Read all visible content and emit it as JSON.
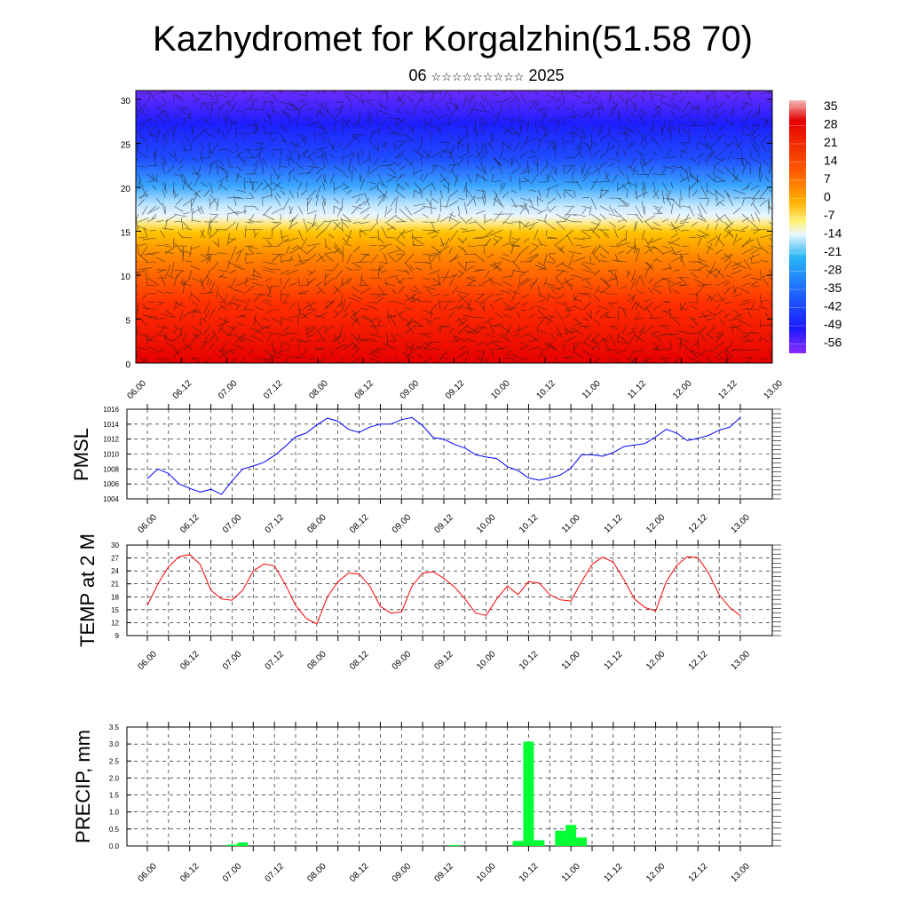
{
  "header": {
    "title": "Kazhydromet for Korgalzhin(51.58 70)",
    "date_day": "06",
    "date_stars": "☆☆☆☆☆☆☆☆☆",
    "date_year": "2025"
  },
  "colors": {
    "pmsl_line": "#0000ff",
    "temp_line": "#ff0000",
    "precip_bar": "#00ff33",
    "grid": "#000000"
  },
  "chart_data": [
    {
      "type": "heatmap",
      "title": "",
      "xlabel": "",
      "ylabel": "",
      "x_tick_labels": [
        "06.00",
        "06.12",
        "07.00",
        "07.12",
        "08.00",
        "08.12",
        "09.00",
        "09.12",
        "10.00",
        "10.12",
        "11.00",
        "11.12",
        "12.00",
        "12.12",
        "13.00"
      ],
      "y_ticks": [
        0,
        5,
        10,
        15,
        20,
        25,
        30
      ],
      "ylim": [
        0,
        31
      ],
      "colorbar_labels": [
        "35",
        "28",
        "21",
        "14",
        "7",
        "0",
        "-7",
        "-14",
        "-21",
        "-28",
        "-35",
        "-42",
        "-49",
        "-56"
      ],
      "colorbar_stops": [
        "#f3b8b8",
        "#e60000",
        "#ff5a00",
        "#ff9a00",
        "#ffd000",
        "#fff58a",
        "#d6f0ff",
        "#29b6f6",
        "#1f6bff",
        "#1a1aff",
        "#7a1cff"
      ],
      "overlay": "wind vectors"
    },
    {
      "type": "line",
      "ylabel": "PMSL",
      "x_tick_labels": [
        "06.00",
        "06.12",
        "07.00",
        "07.12",
        "08.00",
        "08.12",
        "09.00",
        "09.12",
        "10.00",
        "10.12",
        "11.00",
        "11.12",
        "12.00",
        "12.12",
        "13.00"
      ],
      "y_ticks": [
        1004,
        1006,
        1008,
        1010,
        1012,
        1014,
        1016
      ],
      "ylim": [
        1004,
        1016
      ],
      "x_hours": [
        0,
        3,
        6,
        9,
        12,
        15,
        18,
        21,
        24,
        27,
        30,
        33,
        36,
        39,
        42,
        45,
        48,
        51,
        54,
        57,
        60,
        63,
        66,
        69,
        72,
        75,
        78,
        81,
        84,
        87,
        90,
        93,
        96,
        99,
        102,
        105,
        108,
        111,
        114,
        117,
        120,
        123,
        126,
        129,
        132,
        135,
        138,
        141,
        144,
        147,
        150,
        153,
        156,
        159,
        162,
        165,
        168
      ],
      "values": [
        1006.7,
        1008.0,
        1007.4,
        1006.0,
        1005.4,
        1004.9,
        1005.3,
        1004.6,
        1006.4,
        1008.0,
        1008.4,
        1008.9,
        1009.8,
        1011.0,
        1012.3,
        1012.8,
        1013.9,
        1014.8,
        1014.4,
        1013.3,
        1012.9,
        1013.6,
        1014.0,
        1014.0,
        1014.6,
        1014.9,
        1013.8,
        1012.2,
        1012.0,
        1011.3,
        1010.8,
        1009.9,
        1009.6,
        1009.4,
        1008.3,
        1007.8,
        1006.8,
        1006.5,
        1006.8,
        1007.2,
        1008.1,
        1009.9,
        1009.9,
        1009.7,
        1010.2,
        1011.0,
        1011.2,
        1011.4,
        1012.3,
        1013.3,
        1012.8,
        1011.8,
        1012.1,
        1012.5,
        1013.2,
        1013.6,
        1014.9
      ]
    },
    {
      "type": "line",
      "ylabel": "TEMP at 2 M",
      "x_tick_labels": [
        "06.00",
        "06.12",
        "07.00",
        "07.12",
        "08.00",
        "08.12",
        "09.00",
        "09.12",
        "10.00",
        "10.12",
        "11.00",
        "11.12",
        "12.00",
        "12.12",
        "13.00"
      ],
      "y_ticks": [
        9,
        12,
        15,
        18,
        21,
        24,
        27,
        30
      ],
      "ylim": [
        9,
        30
      ],
      "x_hours": [
        0,
        3,
        6,
        9,
        12,
        15,
        18,
        21,
        24,
        27,
        30,
        33,
        36,
        39,
        42,
        45,
        48,
        51,
        54,
        57,
        60,
        63,
        66,
        69,
        72,
        75,
        78,
        81,
        84,
        87,
        90,
        93,
        96,
        99,
        102,
        105,
        108,
        111,
        114,
        117,
        120,
        123,
        126,
        129,
        132,
        135,
        138,
        141,
        144,
        147,
        150,
        153,
        156,
        159,
        162,
        165,
        168
      ],
      "values": [
        16.0,
        21.0,
        25.0,
        27.3,
        27.8,
        25.5,
        19.5,
        17.5,
        17.2,
        19.5,
        24.0,
        25.6,
        25.2,
        21.0,
        16.0,
        13.0,
        11.7,
        18.0,
        21.5,
        23.5,
        23.3,
        20.5,
        15.8,
        14.2,
        14.5,
        20.5,
        23.5,
        23.8,
        22.3,
        20.3,
        17.5,
        14.2,
        13.7,
        17.5,
        20.5,
        18.5,
        21.5,
        21.2,
        18.5,
        17.3,
        17.0,
        21.5,
        25.5,
        27.2,
        26.0,
        22.0,
        17.5,
        15.5,
        14.7,
        21.5,
        25.3,
        27.3,
        27.1,
        23.5,
        18.5,
        15.5,
        13.6
      ]
    },
    {
      "type": "bar",
      "ylabel": "PRECIP, mm",
      "x_tick_labels": [
        "06.00",
        "06.12",
        "07.00",
        "07.12",
        "08.00",
        "08.12",
        "09.00",
        "09.12",
        "10.00",
        "10.12",
        "11.00",
        "11.12",
        "12.00",
        "12.12",
        "13.00"
      ],
      "y_ticks": [
        "0.0",
        "0.5",
        "1.0",
        "1.5",
        "2.0",
        "2.5",
        "3.0",
        "3.5"
      ],
      "ylim": [
        0,
        3.5
      ],
      "bars": [
        {
          "hour": 24,
          "value": 0.04
        },
        {
          "hour": 27,
          "value": 0.1
        },
        {
          "hour": 87,
          "value": 0.03
        },
        {
          "hour": 105,
          "value": 0.15
        },
        {
          "hour": 108,
          "value": 3.07
        },
        {
          "hour": 111,
          "value": 0.17
        },
        {
          "hour": 117,
          "value": 0.45
        },
        {
          "hour": 120,
          "value": 0.62
        },
        {
          "hour": 123,
          "value": 0.25
        }
      ]
    }
  ]
}
